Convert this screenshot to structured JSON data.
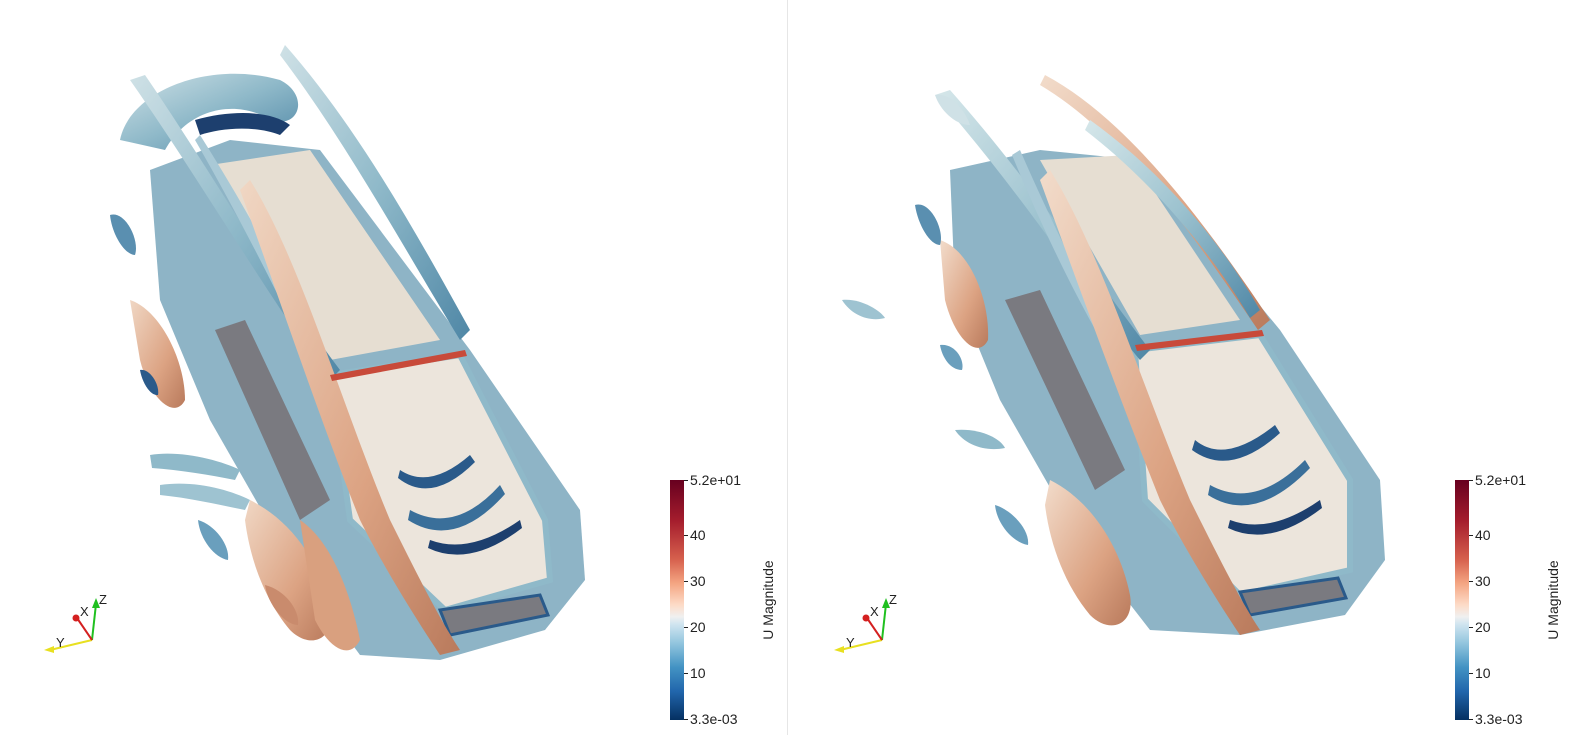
{
  "views": [
    {
      "id": "left",
      "colorbar": {
        "title": "U Magnitude",
        "max_label": "5.2e+01",
        "min_label": "3.3e-03",
        "ticks": [
          "40",
          "30",
          "20",
          "10"
        ]
      },
      "axes": {
        "x": "X",
        "y": "Y",
        "z": "Z"
      }
    },
    {
      "id": "right",
      "colorbar": {
        "title": "U Magnitude",
        "max_label": "5.2e+01",
        "min_label": "3.3e-03",
        "ticks": [
          "40",
          "30",
          "20",
          "10"
        ]
      },
      "axes": {
        "x": "X",
        "y": "Y",
        "z": "Z"
      }
    }
  ],
  "colors": {
    "body_cream": "#e6ded2",
    "vortex_blue": "#9ec3d1",
    "vortex_orange": "#d9a07f",
    "deep_blue": "#1d3f6e",
    "gray_surface": "#7a7a80",
    "axis_x": "#d42020",
    "axis_y": "#e8e020",
    "axis_z": "#20c020"
  }
}
